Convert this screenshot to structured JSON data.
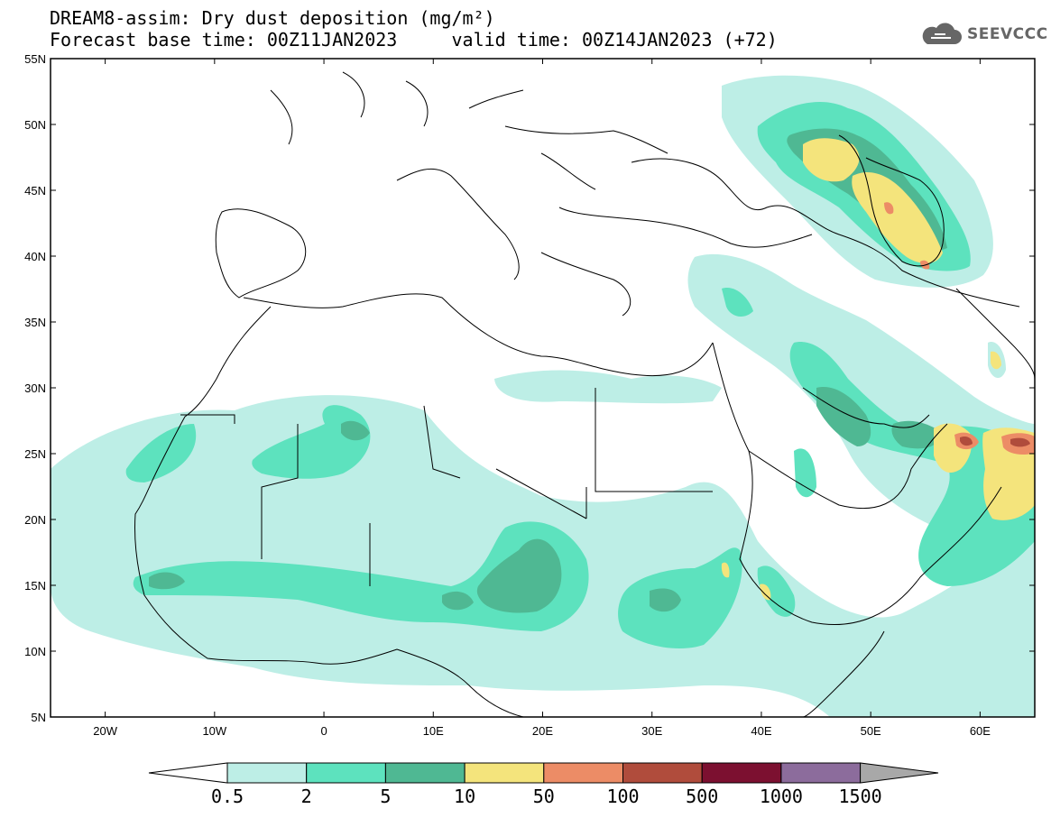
{
  "title": {
    "line1": "DREAM8-assim: Dry dust deposition (mg/m²)",
    "line2": "Forecast base time: 00Z11JAN2023     valid time: 00Z14JAN2023 (+72)"
  },
  "logo": {
    "text": "SEEVCCC",
    "icon": "cloud-icon"
  },
  "axes": {
    "lat_labels": [
      "55N",
      "50N",
      "45N",
      "40N",
      "35N",
      "30N",
      "25N",
      "20N",
      "15N",
      "10N",
      "5N"
    ],
    "lat_values": [
      55,
      50,
      45,
      40,
      35,
      30,
      25,
      20,
      15,
      10,
      5
    ],
    "lon_labels": [
      "20W",
      "10W",
      "0",
      "10E",
      "20E",
      "30E",
      "40E",
      "50E",
      "60E"
    ],
    "lon_values": [
      -20,
      -10,
      0,
      10,
      20,
      30,
      40,
      50,
      60
    ],
    "lon_range": [
      -25,
      65
    ],
    "lat_range": [
      5,
      55
    ]
  },
  "colorbar": {
    "labels": [
      "0.5",
      "2",
      "5",
      "10",
      "50",
      "100",
      "500",
      "1000",
      "1500"
    ],
    "colors": [
      "#bdeee6",
      "#5de2be",
      "#4fb893",
      "#f4e47c",
      "#ec8c66",
      "#b04c3c",
      "#7c1030",
      "#8c6c9c",
      "#a8a8a8"
    ],
    "under_color": "#ffffff"
  },
  "colors": {
    "level1": "#bdeee6",
    "level2": "#5de2be",
    "level3": "#4fb893",
    "level4": "#f4e47c",
    "level5": "#ec8c66",
    "level6": "#b04c3c",
    "border": "#000000"
  }
}
